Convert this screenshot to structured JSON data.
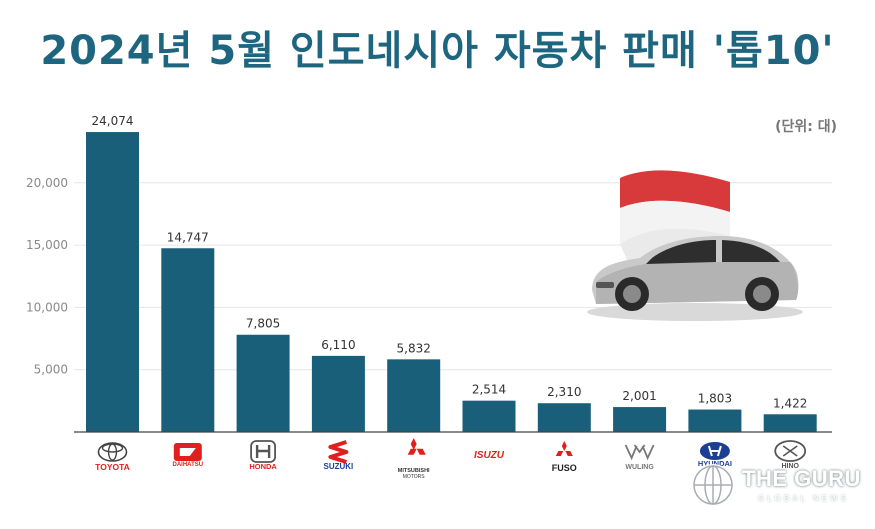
{
  "title": "2024년 5월 인도네시아 자동차 판매 '톱10'",
  "unit_label": "(단위: 대)",
  "colors": {
    "bar": "#1a5f7a",
    "title": "#1e6680"
  },
  "watermark": {
    "name": "THE GURU",
    "tagline": "GLOBAL NEWS"
  },
  "chart_data": {
    "type": "bar",
    "categories": [
      "TOYOTA",
      "DAIHATSU",
      "HONDA",
      "SUZUKI",
      "MITSUBISHI MOTORS",
      "ISUZU",
      "FUSO",
      "WULING",
      "HYUNDAI",
      "HINO"
    ],
    "values": [
      24074,
      14747,
      7805,
      6110,
      5832,
      2514,
      2310,
      2001,
      1803,
      1422
    ],
    "value_labels": [
      "24,074",
      "14,747",
      "7,805",
      "6,110",
      "5,832",
      "2,514",
      "2,310",
      "2,001",
      "1,803",
      "1,422"
    ],
    "yticks": [
      5000,
      10000,
      15000,
      20000
    ],
    "ytick_labels": [
      "5,000",
      "10,000",
      "15,000",
      "20,000"
    ],
    "ylim": [
      0,
      25000
    ],
    "grid": true,
    "title": "2024년 5월 인도네시아 자동차 판매 '톱10'",
    "xlabel": "",
    "ylabel": ""
  }
}
